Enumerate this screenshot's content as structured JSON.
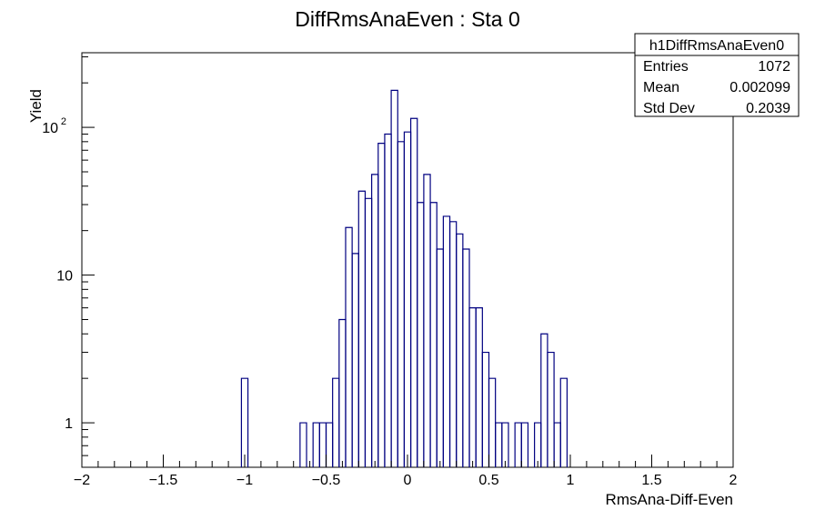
{
  "chart_data": {
    "type": "histogram",
    "title": "DiffRmsAnaEven : Sta 0",
    "xlabel": "RmsAna-Diff-Even",
    "ylabel": "Yield",
    "xlim": [
      -2,
      2
    ],
    "ylim": [
      0.5,
      320
    ],
    "yscale": "log",
    "bin_width": 0.04,
    "line_color": "#000080",
    "grid": false,
    "x_ticks": [
      {
        "value": -2,
        "label": "−2"
      },
      {
        "value": -1.5,
        "label": "−1.5"
      },
      {
        "value": -1,
        "label": "−1"
      },
      {
        "value": -0.5,
        "label": "−0.5"
      },
      {
        "value": 0,
        "label": "0"
      },
      {
        "value": 0.5,
        "label": "0.5"
      },
      {
        "value": 1,
        "label": "1"
      },
      {
        "value": 1.5,
        "label": "1.5"
      },
      {
        "value": 2,
        "label": "2"
      }
    ],
    "y_ticks": [
      {
        "value": 1,
        "label": "1"
      },
      {
        "value": 10,
        "label": "10"
      },
      {
        "value": 100,
        "label": "10",
        "exponent": "2"
      }
    ],
    "bins": [
      {
        "x": -1.02,
        "y": 2
      },
      {
        "x": -0.66,
        "y": 1
      },
      {
        "x": -0.58,
        "y": 1
      },
      {
        "x": -0.54,
        "y": 1
      },
      {
        "x": -0.5,
        "y": 1
      },
      {
        "x": -0.46,
        "y": 2
      },
      {
        "x": -0.42,
        "y": 5
      },
      {
        "x": -0.38,
        "y": 21
      },
      {
        "x": -0.34,
        "y": 14
      },
      {
        "x": -0.3,
        "y": 37
      },
      {
        "x": -0.26,
        "y": 33
      },
      {
        "x": -0.22,
        "y": 48
      },
      {
        "x": -0.18,
        "y": 78
      },
      {
        "x": -0.14,
        "y": 90
      },
      {
        "x": -0.1,
        "y": 178
      },
      {
        "x": -0.06,
        "y": 80
      },
      {
        "x": -0.02,
        "y": 93
      },
      {
        "x": 0.02,
        "y": 115
      },
      {
        "x": 0.06,
        "y": 31
      },
      {
        "x": 0.1,
        "y": 48
      },
      {
        "x": 0.14,
        "y": 31
      },
      {
        "x": 0.18,
        "y": 15
      },
      {
        "x": 0.22,
        "y": 25
      },
      {
        "x": 0.26,
        "y": 23
      },
      {
        "x": 0.3,
        "y": 19
      },
      {
        "x": 0.34,
        "y": 15
      },
      {
        "x": 0.38,
        "y": 6
      },
      {
        "x": 0.42,
        "y": 6
      },
      {
        "x": 0.46,
        "y": 3
      },
      {
        "x": 0.5,
        "y": 2
      },
      {
        "x": 0.54,
        "y": 1
      },
      {
        "x": 0.58,
        "y": 1
      },
      {
        "x": 0.66,
        "y": 1
      },
      {
        "x": 0.7,
        "y": 1
      },
      {
        "x": 0.78,
        "y": 1
      },
      {
        "x": 0.82,
        "y": 4
      },
      {
        "x": 0.86,
        "y": 3
      },
      {
        "x": 0.9,
        "y": 1
      },
      {
        "x": 0.94,
        "y": 2
      }
    ],
    "stats_box": {
      "name": "h1DiffRmsAnaEven0",
      "rows": [
        {
          "label": "Entries",
          "value": "1072"
        },
        {
          "label": "Mean",
          "value": "0.002099"
        },
        {
          "label": "Std Dev",
          "value": "0.2039"
        }
      ]
    }
  }
}
